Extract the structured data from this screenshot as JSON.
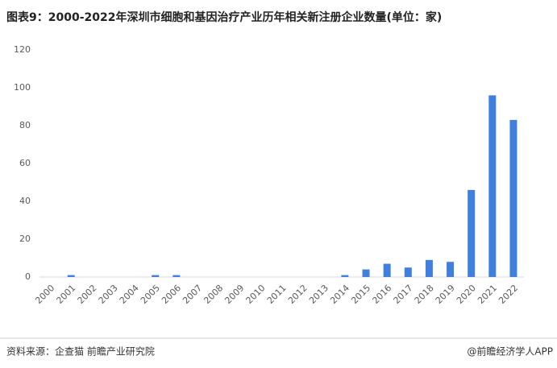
{
  "chart_data": {
    "type": "bar",
    "title": "图表9：2000-2022年深圳市细胞和基因治疗产业历年相关新注册企业数量(单位：家)",
    "categories": [
      "2000",
      "2001",
      "2002",
      "2003",
      "2004",
      "2005",
      "2006",
      "2007",
      "2008",
      "2009",
      "2010",
      "2011",
      "2012",
      "2013",
      "2014",
      "2015",
      "2016",
      "2017",
      "2018",
      "2019",
      "2020",
      "2021",
      "2022"
    ],
    "values": [
      0,
      1,
      0,
      0,
      0,
      1,
      1,
      0,
      0,
      0,
      0,
      0,
      0,
      0,
      1,
      4,
      7,
      5,
      9,
      8,
      46,
      96,
      83
    ],
    "color": "#3f7fde",
    "ylim": [
      0,
      120
    ],
    "yticks": [
      0,
      20,
      40,
      60,
      80,
      100,
      120
    ],
    "grid": false,
    "source": "资料来源：企查猫 前瞻产业研究院",
    "credit": "@前瞻经济学人APP"
  }
}
